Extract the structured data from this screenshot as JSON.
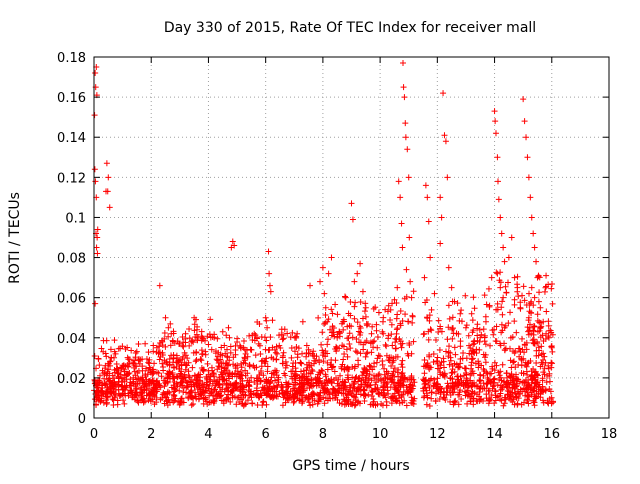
{
  "chart_data": {
    "type": "scatter",
    "title": "Day 330 of 2015, Rate Of TEC Index for receiver mall",
    "xlabel": "GPS time / hours",
    "ylabel": "ROTI / TECUs",
    "xlim": [
      0,
      18
    ],
    "ylim": [
      0,
      0.18
    ],
    "x_ticks": [
      0,
      2,
      4,
      6,
      8,
      10,
      12,
      14,
      16,
      18
    ],
    "y_ticks": [
      0,
      0.02,
      0.04,
      0.06,
      0.08,
      0.1,
      0.12,
      0.14,
      0.16,
      0.18
    ],
    "grid": true,
    "legend": "none",
    "marker": "plus",
    "color": "#ff0000",
    "points": [
      [
        0.02,
        0.151
      ],
      [
        0.04,
        0.172
      ],
      [
        0.06,
        0.165
      ],
      [
        0.08,
        0.175
      ],
      [
        0.1,
        0.161
      ],
      [
        0.03,
        0.124
      ],
      [
        0.05,
        0.118
      ],
      [
        0.07,
        0.092
      ],
      [
        0.09,
        0.085
      ],
      [
        0.11,
        0.09
      ],
      [
        0.13,
        0.094
      ],
      [
        0.08,
        0.11
      ],
      [
        0.12,
        0.082
      ],
      [
        0.04,
        0.057
      ],
      [
        0.45,
        0.127
      ],
      [
        0.5,
        0.12
      ],
      [
        0.42,
        0.113
      ],
      [
        0.55,
        0.105
      ],
      [
        0.48,
        0.113
      ],
      [
        1.4,
        0.025
      ],
      [
        1.2,
        0.022
      ],
      [
        1.6,
        0.027
      ],
      [
        1.8,
        0.021
      ],
      [
        2.0,
        0.018
      ],
      [
        2.3,
        0.066
      ],
      [
        2.5,
        0.05
      ],
      [
        2.6,
        0.045
      ],
      [
        2.2,
        0.035
      ],
      [
        2.7,
        0.042
      ],
      [
        2.9,
        0.03
      ],
      [
        3.2,
        0.042
      ],
      [
        3.4,
        0.038
      ],
      [
        3.6,
        0.044
      ],
      [
        3.8,
        0.032
      ],
      [
        3.1,
        0.036
      ],
      [
        4.2,
        0.04
      ],
      [
        4.5,
        0.043
      ],
      [
        4.85,
        0.088
      ],
      [
        4.9,
        0.086
      ],
      [
        4.8,
        0.085
      ],
      [
        4.7,
        0.045
      ],
      [
        5.1,
        0.036
      ],
      [
        5.3,
        0.032
      ],
      [
        5.6,
        0.042
      ],
      [
        5.8,
        0.036
      ],
      [
        6.0,
        0.05
      ],
      [
        6.05,
        0.045
      ],
      [
        6.1,
        0.083
      ],
      [
        6.12,
        0.072
      ],
      [
        6.15,
        0.066
      ],
      [
        6.18,
        0.063
      ],
      [
        6.4,
        0.032
      ],
      [
        6.7,
        0.025
      ],
      [
        6.9,
        0.03
      ],
      [
        7.1,
        0.042
      ],
      [
        7.3,
        0.048
      ],
      [
        7.5,
        0.034
      ],
      [
        7.55,
        0.066
      ],
      [
        7.7,
        0.031
      ],
      [
        7.9,
        0.068
      ],
      [
        8.0,
        0.075
      ],
      [
        8.05,
        0.062
      ],
      [
        8.1,
        0.055
      ],
      [
        8.2,
        0.072
      ],
      [
        8.3,
        0.08
      ],
      [
        8.15,
        0.048
      ],
      [
        8.25,
        0.044
      ],
      [
        8.5,
        0.04
      ],
      [
        8.7,
        0.048
      ],
      [
        8.8,
        0.06
      ],
      [
        9.0,
        0.107
      ],
      [
        9.05,
        0.099
      ],
      [
        9.1,
        0.068
      ],
      [
        9.2,
        0.072
      ],
      [
        9.3,
        0.077
      ],
      [
        9.4,
        0.063
      ],
      [
        9.5,
        0.055
      ],
      [
        9.7,
        0.042
      ],
      [
        9.9,
        0.035
      ],
      [
        10.1,
        0.048
      ],
      [
        10.3,
        0.056
      ],
      [
        10.65,
        0.118
      ],
      [
        10.7,
        0.11
      ],
      [
        10.8,
        0.177
      ],
      [
        10.82,
        0.165
      ],
      [
        10.85,
        0.16
      ],
      [
        10.88,
        0.147
      ],
      [
        10.9,
        0.14
      ],
      [
        10.75,
        0.097
      ],
      [
        10.78,
        0.085
      ],
      [
        10.92,
        0.074
      ],
      [
        10.95,
        0.134
      ],
      [
        11.0,
        0.12
      ],
      [
        11.02,
        0.09
      ],
      [
        10.6,
        0.065
      ],
      [
        11.05,
        0.068
      ],
      [
        11.1,
        0.06
      ],
      [
        11.6,
        0.116
      ],
      [
        11.65,
        0.11
      ],
      [
        11.7,
        0.098
      ],
      [
        11.75,
        0.08
      ],
      [
        11.55,
        0.07
      ],
      [
        11.9,
        0.062
      ],
      [
        12.1,
        0.11
      ],
      [
        12.15,
        0.1
      ],
      [
        12.2,
        0.162
      ],
      [
        12.25,
        0.141
      ],
      [
        12.3,
        0.138
      ],
      [
        12.35,
        0.12
      ],
      [
        12.1,
        0.087
      ],
      [
        12.4,
        0.075
      ],
      [
        12.5,
        0.065
      ],
      [
        12.6,
        0.058
      ],
      [
        12.8,
        0.052
      ],
      [
        13.0,
        0.045
      ],
      [
        13.2,
        0.052
      ],
      [
        13.5,
        0.04
      ],
      [
        13.7,
        0.048
      ],
      [
        13.9,
        0.07
      ],
      [
        14.0,
        0.153
      ],
      [
        14.02,
        0.148
      ],
      [
        14.05,
        0.142
      ],
      [
        14.1,
        0.13
      ],
      [
        14.12,
        0.118
      ],
      [
        14.15,
        0.109
      ],
      [
        14.2,
        0.1
      ],
      [
        14.25,
        0.092
      ],
      [
        14.3,
        0.085
      ],
      [
        14.35,
        0.078
      ],
      [
        14.1,
        0.072
      ],
      [
        14.2,
        0.065
      ],
      [
        14.3,
        0.06
      ],
      [
        14.5,
        0.08
      ],
      [
        14.6,
        0.09
      ],
      [
        14.7,
        0.07
      ],
      [
        14.8,
        0.065
      ],
      [
        14.9,
        0.055
      ],
      [
        15.0,
        0.159
      ],
      [
        15.05,
        0.148
      ],
      [
        15.1,
        0.14
      ],
      [
        15.15,
        0.13
      ],
      [
        15.2,
        0.12
      ],
      [
        15.25,
        0.11
      ],
      [
        15.3,
        0.1
      ],
      [
        15.35,
        0.092
      ],
      [
        15.4,
        0.085
      ],
      [
        15.45,
        0.078
      ],
      [
        15.5,
        0.07
      ],
      [
        15.3,
        0.065
      ],
      [
        15.4,
        0.06
      ],
      [
        15.6,
        0.055
      ],
      [
        15.7,
        0.048
      ],
      [
        15.2,
        0.05
      ],
      [
        15.55,
        0.058
      ],
      [
        15.8,
        0.042
      ],
      [
        15.9,
        0.04
      ],
      [
        16.0,
        0.035
      ],
      [
        16.02,
        0.033
      ]
    ]
  }
}
